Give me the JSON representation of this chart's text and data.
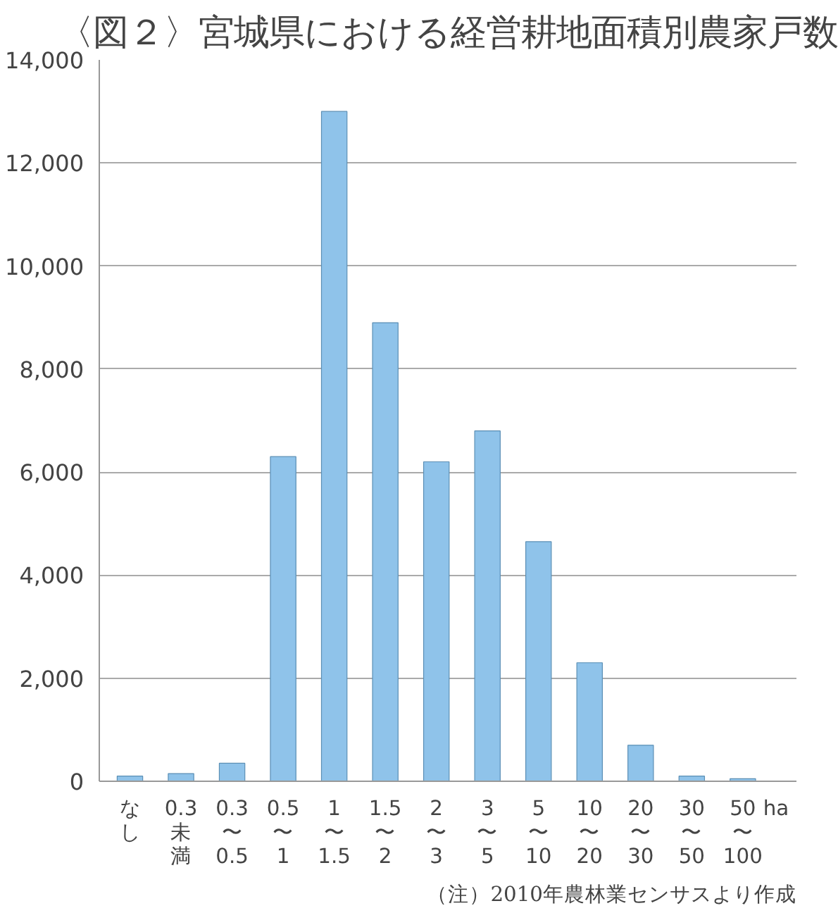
{
  "chart_data": {
    "type": "bar",
    "title": "〈図２〉宮城県における経営耕地面積別農家戸数",
    "categories": [
      "なし",
      "0.3未満",
      "0.3\n〜\n0.5",
      "0.5\n〜\n1",
      "1\n〜\n1.5",
      "1.5\n〜\n2",
      "2\n〜\n3",
      "3\n〜\n5",
      "5\n〜\n10",
      "10\n〜\n20",
      "20\n〜\n30",
      "30\n〜\n50",
      "50\n〜\n100"
    ],
    "values": [
      100,
      150,
      350,
      6300,
      13000,
      8900,
      6200,
      6800,
      4650,
      2300,
      700,
      100,
      50
    ],
    "color": "#8fc3ea",
    "xlabel": "ha",
    "ylim": [
      0,
      14000
    ],
    "yticks": [
      {
        "value": 0,
        "label": "0"
      },
      {
        "value": 2000,
        "label": "2,000"
      },
      {
        "value": 4000,
        "label": "4,000"
      },
      {
        "value": 6000,
        "label": "6,000"
      },
      {
        "value": 8000,
        "label": "8,000"
      },
      {
        "value": 10000,
        "label": "10,000"
      },
      {
        "value": 12000,
        "label": "12,000"
      },
      {
        "value": 14000,
        "label": "14,000"
      }
    ],
    "grid": "y",
    "annotations": [
      "（注）2010年農林業センサスより作成"
    ]
  }
}
